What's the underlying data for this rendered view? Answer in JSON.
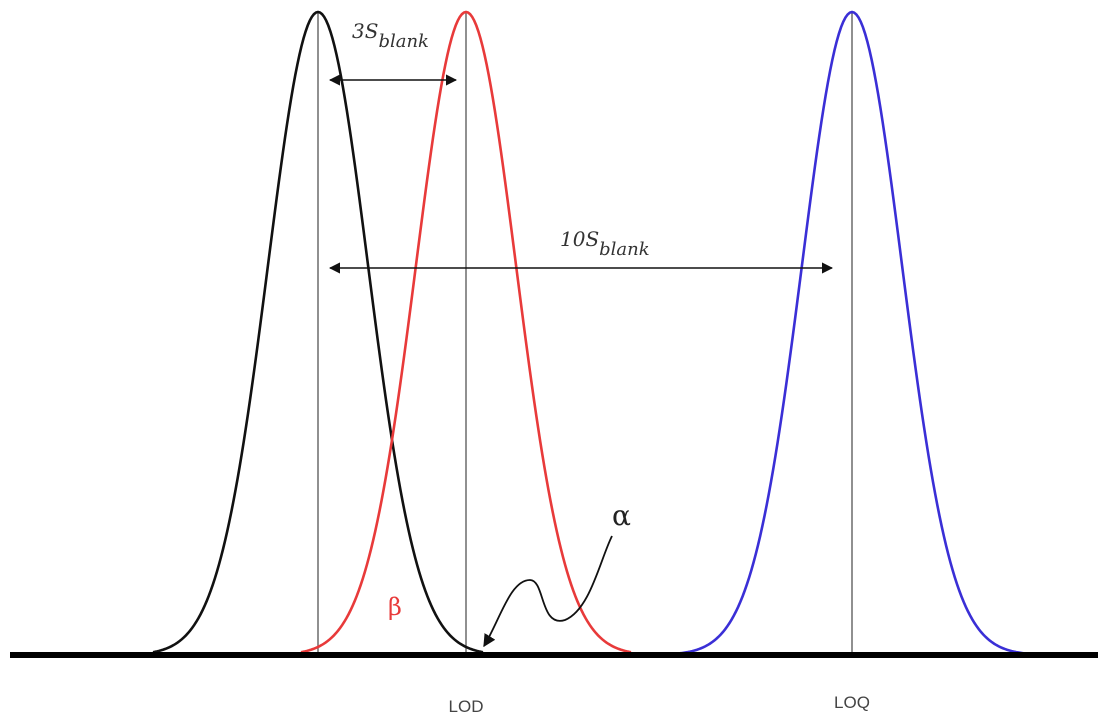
{
  "colors": {
    "blank_curve": "#111111",
    "lod_curve": "#e83a3a",
    "loq_curve": "#3a2fd6",
    "baseline": "#000000",
    "guide_lines": "#555555",
    "arrows": "#111111",
    "beta_label": "#e83a3a"
  },
  "labels": {
    "three_s_main": "3S",
    "three_s_sub": "blank",
    "ten_s_main": "10S",
    "ten_s_sub": "blank",
    "alpha": "α",
    "beta": "β",
    "lod": "LOD",
    "loq": "LOQ"
  }
}
